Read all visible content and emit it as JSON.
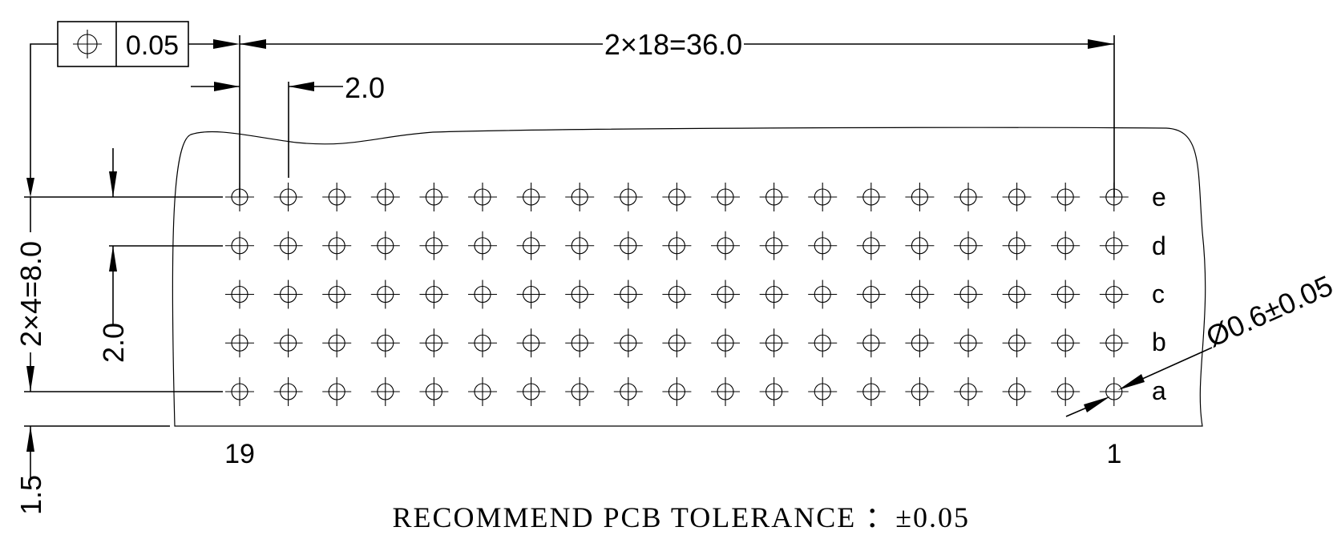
{
  "dimensions": {
    "pitch_total_x": "2×18=36.0",
    "pitch_x": "2.0",
    "pitch_total_y": "2×4=8.0",
    "pitch_y": "2.0",
    "edge_offset": "1.5",
    "hole_diameter": "Ø0.6±0.05"
  },
  "feature_control_frame": {
    "symbol": "position-icon",
    "tolerance": "0.05"
  },
  "rows": [
    "e",
    "d",
    "c",
    "b",
    "a"
  ],
  "pin_labels": {
    "first": "19",
    "last": "1"
  },
  "grid": {
    "columns": 19,
    "rows": 5
  },
  "note": "RECOMMEND PCB TOLERANCE ：±0.05"
}
